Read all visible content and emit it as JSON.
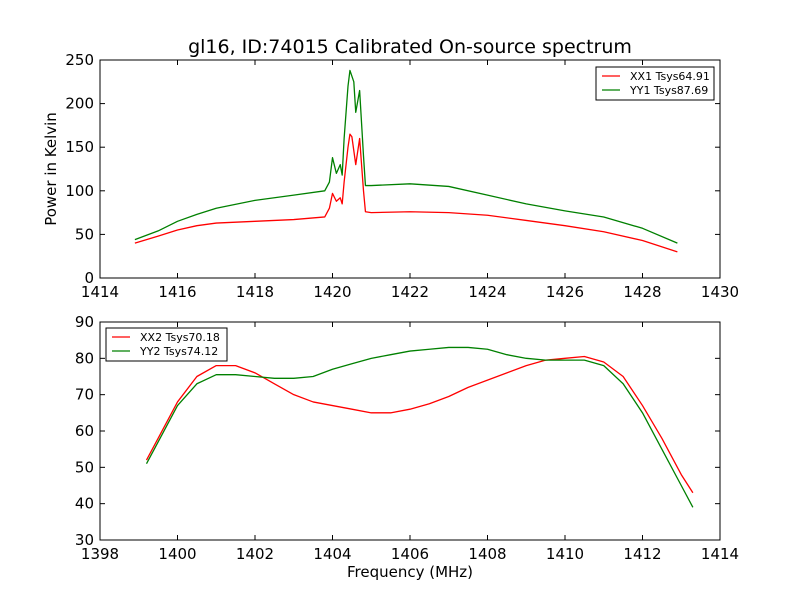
{
  "chart_data": [
    {
      "type": "line",
      "title": "gl16, ID:74015 Calibrated On-source spectrum",
      "xlabel": "",
      "ylabel": "Power in Kelvin",
      "xlim": [
        1414,
        1430
      ],
      "ylim": [
        0,
        250
      ],
      "xticks": [
        1414,
        1416,
        1418,
        1420,
        1422,
        1424,
        1426,
        1428,
        1430
      ],
      "yticks": [
        0,
        50,
        100,
        150,
        200,
        250
      ],
      "grid": false,
      "legend_position": "top-right",
      "series": [
        {
          "name": "XX1 Tsys64.91",
          "color": "#ff0000",
          "x": [
            1414.9,
            1415.5,
            1416.0,
            1416.5,
            1417.0,
            1418.0,
            1419.0,
            1419.8,
            1419.92,
            1420.0,
            1420.1,
            1420.2,
            1420.25,
            1420.3,
            1420.4,
            1420.45,
            1420.5,
            1420.6,
            1420.7,
            1420.8,
            1420.85,
            1421.0,
            1422.0,
            1423.0,
            1424.0,
            1425.0,
            1426.0,
            1427.0,
            1428.0,
            1428.9
          ],
          "y": [
            40,
            48,
            55,
            60,
            63,
            65,
            67,
            70,
            80,
            97,
            88,
            92,
            85,
            110,
            150,
            165,
            162,
            130,
            160,
            100,
            76,
            75,
            76,
            75,
            72,
            66,
            60,
            53,
            43,
            30
          ]
        },
        {
          "name": "YY1 Tsys87.69",
          "color": "#008000",
          "x": [
            1414.9,
            1415.5,
            1416.0,
            1416.5,
            1417.0,
            1418.0,
            1419.0,
            1419.8,
            1419.92,
            1420.0,
            1420.1,
            1420.2,
            1420.25,
            1420.3,
            1420.4,
            1420.45,
            1420.55,
            1420.6,
            1420.7,
            1420.8,
            1420.85,
            1421.0,
            1422.0,
            1423.0,
            1424.0,
            1425.0,
            1426.0,
            1427.0,
            1428.0,
            1428.9
          ],
          "y": [
            44,
            54,
            65,
            73,
            80,
            89,
            95,
            100,
            110,
            138,
            120,
            130,
            118,
            160,
            220,
            238,
            225,
            190,
            215,
            140,
            106,
            106,
            108,
            105,
            95,
            85,
            77,
            70,
            57,
            40
          ]
        }
      ]
    },
    {
      "type": "line",
      "title": "",
      "xlabel": "Frequency (MHz)",
      "ylabel": "",
      "xlim": [
        1398,
        1414
      ],
      "ylim": [
        30,
        90
      ],
      "xticks": [
        1398,
        1400,
        1402,
        1404,
        1406,
        1408,
        1410,
        1412,
        1414
      ],
      "yticks": [
        30,
        40,
        50,
        60,
        70,
        80,
        90
      ],
      "grid": false,
      "legend_position": "top-left",
      "series": [
        {
          "name": "XX2 Tsys70.18",
          "color": "#ff0000",
          "x": [
            1399.2,
            1399.5,
            1400.0,
            1400.5,
            1401.0,
            1401.5,
            1402.0,
            1402.5,
            1403.0,
            1403.5,
            1404.0,
            1404.5,
            1405.0,
            1405.5,
            1406.0,
            1406.5,
            1407.0,
            1407.5,
            1408.0,
            1408.5,
            1409.0,
            1409.5,
            1410.0,
            1410.5,
            1411.0,
            1411.5,
            1412.0,
            1412.5,
            1413.0,
            1413.3
          ],
          "y": [
            52,
            58,
            68,
            75,
            78,
            78,
            76,
            73,
            70,
            68,
            67,
            66,
            65,
            65,
            66,
            67.5,
            69.5,
            72,
            74,
            76,
            78,
            79.5,
            80,
            80.5,
            79,
            75,
            67,
            58,
            48,
            43
          ]
        },
        {
          "name": "YY2 Tsys74.12",
          "color": "#008000",
          "x": [
            1399.2,
            1399.5,
            1400.0,
            1400.5,
            1401.0,
            1401.5,
            1402.0,
            1402.5,
            1403.0,
            1403.5,
            1404.0,
            1404.5,
            1405.0,
            1405.5,
            1406.0,
            1406.5,
            1407.0,
            1407.5,
            1408.0,
            1408.5,
            1409.0,
            1409.5,
            1410.0,
            1410.5,
            1411.0,
            1411.5,
            1412.0,
            1412.5,
            1413.0,
            1413.3
          ],
          "y": [
            51,
            57,
            67,
            73,
            75.5,
            75.5,
            75,
            74.5,
            74.5,
            75,
            77,
            78.5,
            80,
            81,
            82,
            82.5,
            83,
            83,
            82.5,
            81,
            80,
            79.5,
            79.5,
            79.5,
            78,
            73,
            65,
            55,
            45,
            39
          ]
        }
      ]
    }
  ]
}
